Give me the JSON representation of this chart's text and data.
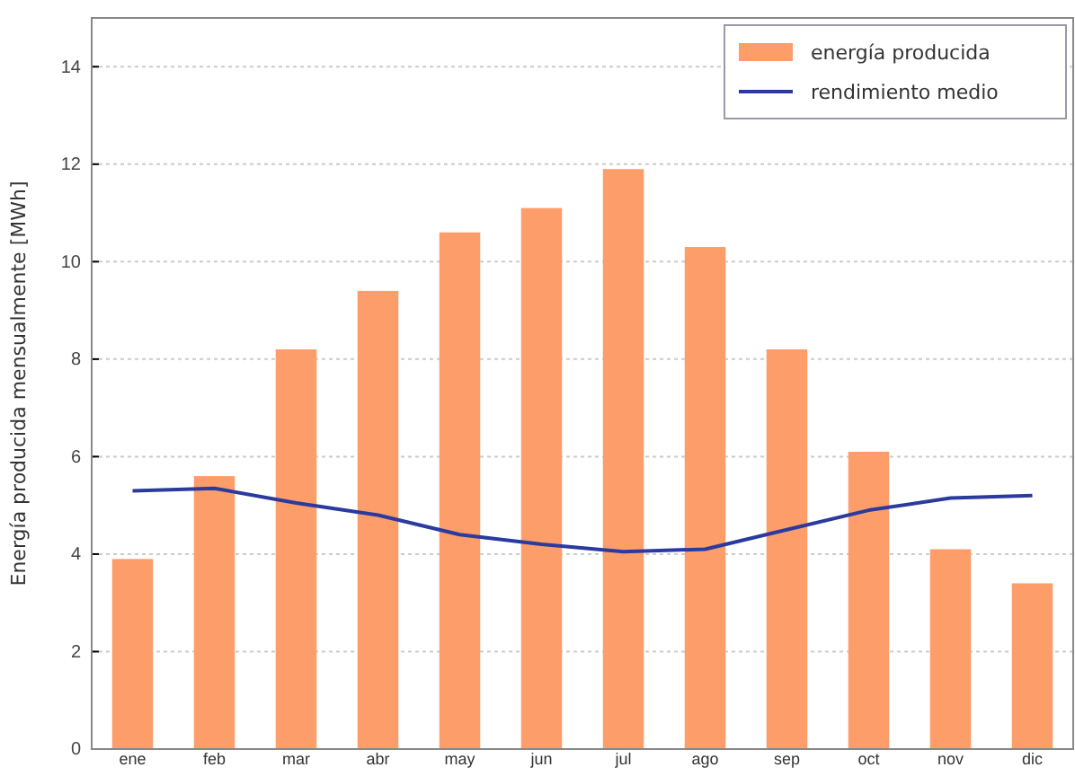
{
  "chart_data": {
    "type": "bar",
    "ylabel": "Energía producida mensualmente [MWh]",
    "categories": [
      "ene",
      "feb",
      "mar",
      "abr",
      "may",
      "jun",
      "jul",
      "ago",
      "sep",
      "oct",
      "nov",
      "dic"
    ],
    "series": [
      {
        "name": "energía producida",
        "color": "#fc9d6a",
        "values": [
          3.9,
          5.6,
          8.2,
          9.4,
          10.6,
          11.1,
          11.9,
          10.3,
          8.2,
          6.1,
          4.1,
          3.4
        ]
      },
      {
        "name": "rendimiento medio",
        "type": "line",
        "color": "#2a3a9e",
        "values": [
          5.3,
          5.35,
          5.05,
          4.8,
          4.4,
          4.2,
          4.05,
          4.1,
          4.5,
          4.9,
          5.15,
          5.2
        ]
      }
    ],
    "ylim": [
      0,
      15
    ],
    "yticks": [
      0,
      2,
      4,
      6,
      8,
      10,
      12,
      14
    ],
    "grid": "y",
    "legend": "top right"
  }
}
